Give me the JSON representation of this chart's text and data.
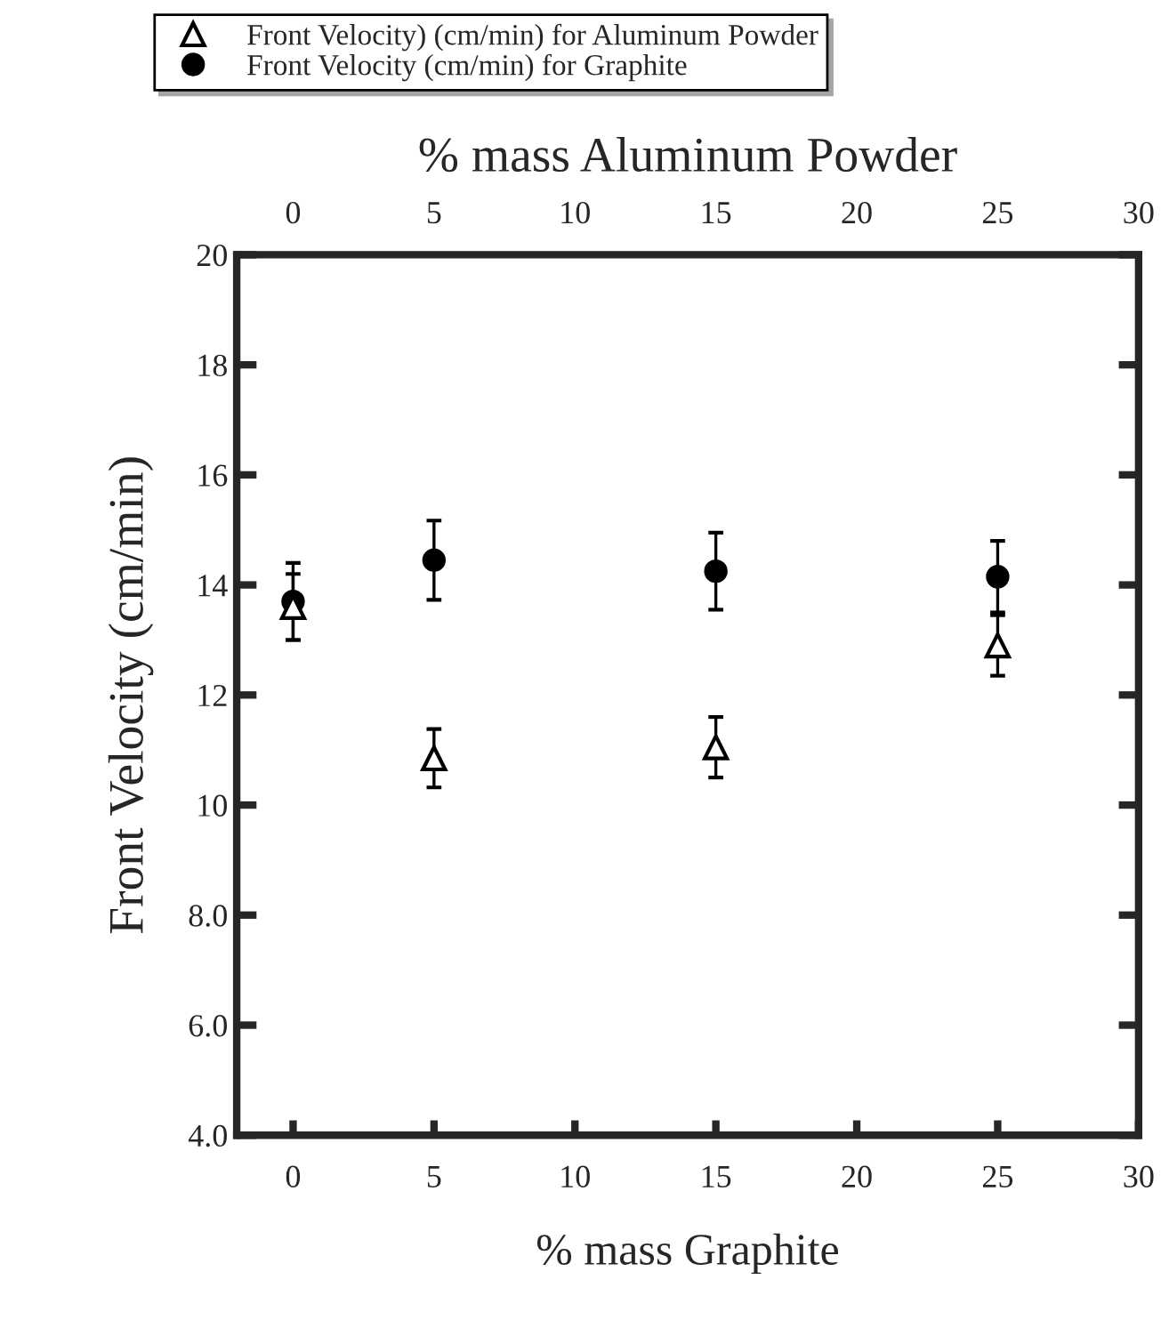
{
  "chart_data": {
    "type": "scatter",
    "xlabel": "% mass Graphite",
    "x2label": "% mass Aluminum Powder",
    "ylabel": "Front Velocity (cm/min)",
    "xlim": [
      -2,
      30
    ],
    "xticks": [
      0,
      5,
      10,
      15,
      20,
      25,
      30
    ],
    "x2lim": [
      -2,
      30
    ],
    "x2ticks": [
      0,
      5,
      10,
      15,
      20,
      25,
      30
    ],
    "ylim": [
      4,
      20
    ],
    "yticks": [
      {
        "value": 4,
        "label": "4.0"
      },
      {
        "value": 6,
        "label": "6.0"
      },
      {
        "value": 8,
        "label": "8.0"
      },
      10,
      12,
      14,
      16,
      18,
      20
    ],
    "legend": "top",
    "grid": false,
    "series": [
      {
        "name": "Front Velocity) (cm/min) for Aluminum Powder",
        "color": "#000000",
        "marker": "triangle",
        "x": [
          0,
          5,
          15,
          25
        ],
        "values": [
          13.6,
          10.85,
          11.05,
          12.9
        ],
        "errors": [
          0.6,
          0.53,
          0.55,
          0.55
        ]
      },
      {
        "name": "Front Velocity (cm/min) for Graphite",
        "color": "#000000",
        "marker": "circle",
        "x": [
          0,
          5,
          15,
          25
        ],
        "values": [
          13.7,
          14.45,
          14.25,
          14.15
        ],
        "errors": [
          0.7,
          0.72,
          0.7,
          0.65
        ]
      }
    ]
  }
}
